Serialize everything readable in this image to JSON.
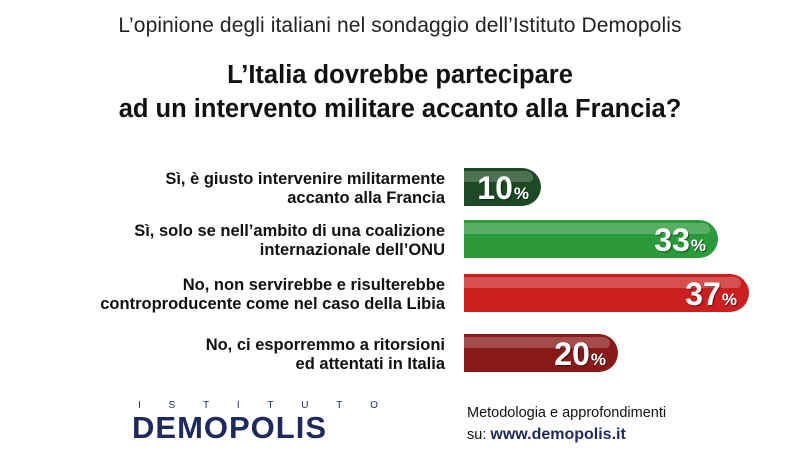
{
  "header": "L’opinione degli italiani nel sondaggio dell’Istituto Demopolis",
  "question": [
    "L’Italia dovrebbe partecipare",
    "ad un intervento militare accanto alla Francia?"
  ],
  "chart_data": {
    "type": "bar",
    "orientation": "horizontal",
    "categories": [
      [
        "Sì, è giusto intervenire militarmente",
        "accanto alla Francia"
      ],
      [
        "Sì, solo se nell’ambito di una coalizione",
        "internazionale dell’ONU"
      ],
      [
        "No, non servirebbe e risulterebbe",
        "controproducente come nel caso della Libia"
      ],
      [
        "No, ci esporremmo a ritorsioni",
        "ed attentati in Italia"
      ]
    ],
    "values": [
      10,
      33,
      37,
      20
    ],
    "value_labels": [
      "10",
      "33",
      "37",
      "20"
    ],
    "unit": "%",
    "colors": [
      "#1d4a25",
      "#2a9a3a",
      "#cc1f1f",
      "#8a1a1a"
    ],
    "title": "L’Italia dovrebbe partecipare ad un intervento militare accanto alla Francia?"
  },
  "logo": {
    "top": [
      "I",
      "S",
      "T",
      "I",
      "T",
      "U",
      "T",
      "O"
    ],
    "main": "DEMOPOLIS"
  },
  "footer": {
    "line1": "Metodologia e approfondimenti",
    "prefix": "su: ",
    "url": "www.demopolis.it"
  }
}
